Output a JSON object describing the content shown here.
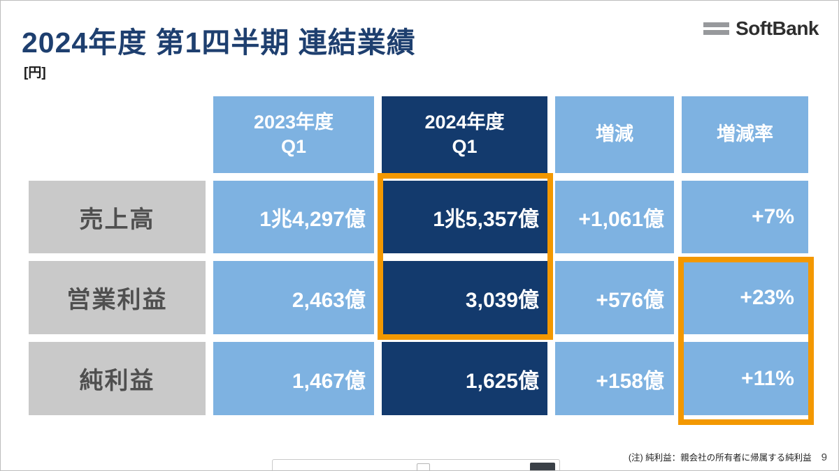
{
  "slide": {
    "title": "2024年度 第1四半期 連結業績",
    "unit_label": "[円]",
    "logo_text": "SoftBank",
    "footnote": "(注) 純利益：親会社の所有者に帰属する純利益",
    "page_number": "9"
  },
  "chart_data": {
    "type": "table",
    "title": "2024年度 第1四半期 連結業績",
    "unit": "円",
    "columns": [
      "2023年度\nQ1",
      "2024年度\nQ1",
      "増減",
      "増減率"
    ],
    "row_labels": [
      "売上高",
      "営業利益",
      "純利益"
    ],
    "rows": [
      [
        "1兆4,297億",
        "1兆5,357億",
        "+1,061億",
        "+7%"
      ],
      [
        "2,463億",
        "3,039億",
        "+576億",
        "+23%"
      ],
      [
        "1,467億",
        "1,625億",
        "+158億",
        "+11%"
      ]
    ]
  },
  "colors": {
    "dark_navy": "#133a6d",
    "light_blue": "#7eb2e1",
    "label_gray": "#c9c9c9",
    "highlight_orange": "#f39800",
    "title_navy": "#1e3f6f"
  }
}
